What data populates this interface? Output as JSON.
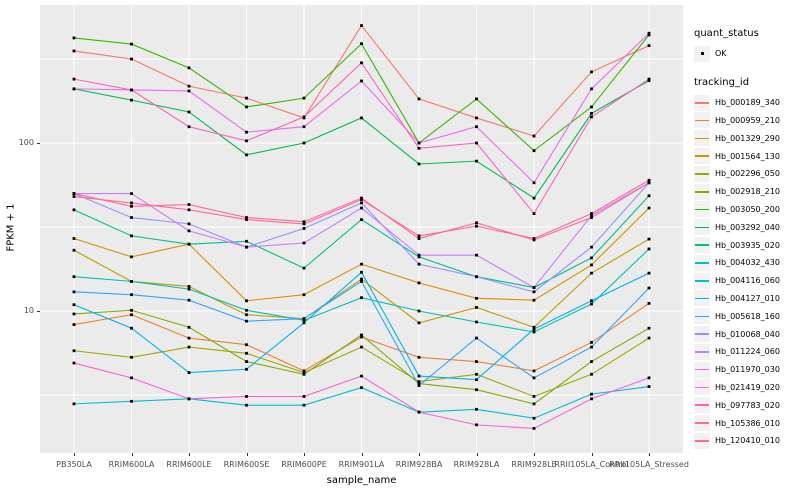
{
  "axes": {
    "x_title": "sample_name",
    "y_title": "FPKM + 1",
    "y_ticks": [
      {
        "label": "100",
        "value": 100
      },
      {
        "label": "10",
        "value": 10
      }
    ]
  },
  "legend": {
    "quant_title": "quant_status",
    "quant_items": [
      {
        "label": "OK",
        "marker": "black-point"
      }
    ],
    "tracking_title": "tracking_id"
  },
  "chart_data": {
    "type": "line",
    "title": "",
    "xlabel": "sample_name",
    "ylabel": "FPKM + 1",
    "y_scale": "log10",
    "ylim": [
      1.43,
      620
    ],
    "major_gridlines_y": [
      10,
      100
    ],
    "minor_gridlines_y": [
      3.162,
      31.62,
      316.23
    ],
    "grid": true,
    "legend_position": "right",
    "point_shape_legend": {
      "title": "quant_status",
      "entries": [
        "OK"
      ]
    },
    "colors": {
      "panel_background": "#EBEBEB",
      "gridline": "#FFFFFF",
      "axis_text": "#4D4D4D",
      "tick_mark": "#333333",
      "legend_key_background": "#F2F2F2",
      "point": "#000000"
    },
    "categories": [
      "PB350LA",
      "RRIM600LA",
      "RRIM600LE",
      "RRIM600SE",
      "RRIM600PE",
      "RRIM901LA",
      "RRIM928BA",
      "RRIM928LA",
      "RRIM928LE",
      "RRII105LA_Control",
      "RRII105LA_Stressed"
    ],
    "series": [
      {
        "name": "Hb_000189_340",
        "color": "#F8766D",
        "values": [
          353,
          316,
          218,
          185,
          141,
          500,
          183,
          141,
          110,
          265,
          380
        ]
      },
      {
        "name": "Hb_000959_210",
        "color": "#EA8331",
        "values": [
          8.3,
          9.5,
          6.9,
          6.3,
          4.4,
          7,
          5.3,
          5,
          4.4,
          6.5,
          11.1
        ]
      },
      {
        "name": "Hb_001329_290",
        "color": "#D89000",
        "values": [
          27,
          21,
          25,
          11.5,
          12.5,
          19,
          14.7,
          11.9,
          11.6,
          18.8,
          41
        ]
      },
      {
        "name": "Hb_001564_130",
        "color": "#C09B00",
        "values": [
          23,
          15,
          14,
          9.5,
          9,
          15.5,
          8.5,
          10.5,
          8,
          16.8,
          26.8
        ]
      },
      {
        "name": "Hb_002296_050",
        "color": "#A3A500",
        "values": [
          5.8,
          5.3,
          6.1,
          5.6,
          4.3,
          6.1,
          3.8,
          4.2,
          3.1,
          4.2,
          6.9
        ]
      },
      {
        "name": "Hb_002918_210",
        "color": "#7CAE00",
        "values": [
          9.6,
          10.1,
          8,
          5,
          4.2,
          7.2,
          3.7,
          3.4,
          2.8,
          5,
          7.9
        ]
      },
      {
        "name": "Hb_003050_200",
        "color": "#39B600",
        "values": [
          422,
          388,
          280,
          164,
          185,
          390,
          100,
          183,
          90,
          164,
          440
        ]
      },
      {
        "name": "Hb_003292_040",
        "color": "#00BB4E",
        "values": [
          210,
          180,
          153,
          85,
          100,
          141,
          75,
          78,
          47,
          150,
          235
        ]
      },
      {
        "name": "Hb_003935_020",
        "color": "#00C087",
        "values": [
          40,
          28,
          25,
          26,
          18,
          35,
          21,
          16,
          13.8,
          20.7,
          48.5
        ]
      },
      {
        "name": "Hb_004032_430",
        "color": "#00C0B2",
        "values": [
          16,
          15,
          13.5,
          10.1,
          8.8,
          12,
          10,
          8.6,
          7.5,
          11,
          23.4
        ]
      },
      {
        "name": "Hb_004116_060",
        "color": "#00BDD2",
        "values": [
          2.8,
          2.9,
          3,
          2.75,
          2.75,
          3.5,
          2.5,
          2.6,
          2.3,
          3.2,
          3.55
        ]
      },
      {
        "name": "Hb_004127_010",
        "color": "#00B4EF",
        "values": [
          10.9,
          7.9,
          4.3,
          4.5,
          8.5,
          17,
          4.1,
          3.9,
          7.8,
          11.5,
          16.8
        ]
      },
      {
        "name": "Hb_005618_160",
        "color": "#35A2FF",
        "values": [
          13,
          12.5,
          11.6,
          8.7,
          9,
          15,
          3.6,
          6.9,
          4,
          6.1,
          13.7
        ]
      },
      {
        "name": "Hb_010068_040",
        "color": "#9590FF",
        "values": [
          50,
          36,
          33,
          24,
          31,
          44,
          19,
          16,
          13,
          24,
          58
        ]
      },
      {
        "name": "Hb_011224_060",
        "color": "#C77CFF",
        "values": [
          50,
          50,
          30,
          24,
          25.4,
          41,
          21.5,
          21.5,
          13.8,
          37,
          58
        ]
      },
      {
        "name": "Hb_011970_030",
        "color": "#E76BF3",
        "values": [
          210,
          207,
          204,
          116,
          125,
          234,
          100,
          125,
          58,
          210,
          450
        ]
      },
      {
        "name": "Hb_021419_020",
        "color": "#FA62DB",
        "values": [
          4.9,
          4,
          3,
          3.1,
          3.1,
          4.1,
          2.5,
          2.1,
          2,
          3,
          4
        ]
      },
      {
        "name": "Hb_097783_020",
        "color": "#FF62BC",
        "values": [
          240,
          207,
          125,
          103,
          143,
          300,
          93,
          100,
          38,
          143,
          240
        ]
      },
      {
        "name": "Hb_105386_010",
        "color": "#FF6A98",
        "values": [
          50,
          42,
          43,
          36,
          34,
          47,
          27,
          33.5,
          26.5,
          36,
          58
        ]
      },
      {
        "name": "Hb_120410_010",
        "color": "#FF689F",
        "values": [
          48,
          44,
          40,
          35,
          33,
          46,
          28,
          32,
          27,
          38,
          60
        ]
      }
    ]
  }
}
